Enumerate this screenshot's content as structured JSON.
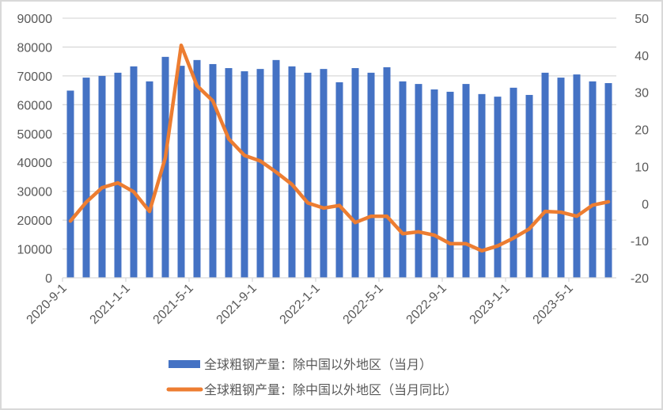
{
  "chart_data": {
    "type": "bar+line",
    "title": "",
    "categories": [
      "2020-9",
      "2020-10",
      "2020-11",
      "2020-12",
      "2021-1",
      "2021-2",
      "2021-3",
      "2021-4",
      "2021-5",
      "2021-6",
      "2021-7",
      "2021-8",
      "2021-9",
      "2021-10",
      "2021-11",
      "2021-12",
      "2022-1",
      "2022-2",
      "2022-3",
      "2022-4",
      "2022-5",
      "2022-6",
      "2022-7",
      "2022-8",
      "2022-9",
      "2022-10",
      "2022-11",
      "2022-12",
      "2023-1",
      "2023-2",
      "2023-3",
      "2023-4",
      "2023-5",
      "2023-6",
      "2023-7"
    ],
    "x_tick_labels": [
      "2020-9-1",
      "2021-1-1",
      "2021-5-1",
      "2021-9-1",
      "2022-1-1",
      "2022-5-1",
      "2022-9-1",
      "2023-1-1",
      "2023-5-1"
    ],
    "series": [
      {
        "name": "全球粗钢产量：除中国以外地区（当月）",
        "type": "bar",
        "axis": "left",
        "color": "#4472C4",
        "values": [
          64900,
          69400,
          70000,
          71100,
          73300,
          68100,
          76600,
          73500,
          75500,
          74100,
          72700,
          71600,
          72400,
          75500,
          73300,
          71100,
          72400,
          67800,
          72700,
          71100,
          73000,
          68100,
          67200,
          65300,
          64500,
          67200,
          63700,
          62800,
          65900,
          63400,
          71100,
          69400,
          70500,
          68100,
          67500
        ]
      },
      {
        "name": "全球粗钢产量：除中国以外地区（当月同比）",
        "type": "line",
        "axis": "right",
        "color": "#ED7D31",
        "values": [
          -4.7,
          0.4,
          4.3,
          5.6,
          3.2,
          -2.1,
          12.4,
          42.7,
          31.8,
          27.7,
          17.5,
          13.0,
          11.5,
          8.5,
          5.2,
          0.2,
          -1.2,
          -0.5,
          -5.1,
          -3.4,
          -3.4,
          -8.1,
          -7.6,
          -8.5,
          -10.8,
          -10.8,
          -12.7,
          -11.4,
          -9.3,
          -6.8,
          -2.1,
          -2.3,
          -3.4,
          -0.4,
          0.5
        ]
      }
    ],
    "y_left": {
      "min": 0,
      "max": 90000,
      "step": 10000,
      "ticks": [
        "0",
        "10000",
        "20000",
        "30000",
        "40000",
        "50000",
        "60000",
        "70000",
        "80000",
        "90000"
      ]
    },
    "y_right": {
      "min": -20,
      "max": 50,
      "step": 10,
      "ticks": [
        "-20",
        "-10",
        "0",
        "10",
        "20",
        "30",
        "40",
        "50"
      ]
    },
    "xlabel": "",
    "ylabel_left": "",
    "ylabel_right": "",
    "grid": true,
    "legend_position": "bottom"
  },
  "legend": {
    "items": [
      {
        "label": "全球粗钢产量：除中国以外地区（当月）",
        "color": "#4472C4",
        "kind": "bar"
      },
      {
        "label": "全球粗钢产量：除中国以外地区（当月同比）",
        "color": "#ED7D31",
        "kind": "line"
      }
    ]
  },
  "colors": {
    "bar": "#4472C4",
    "line": "#ED7D31",
    "grid": "#d9d9d9",
    "text": "#595959",
    "frame": "#d9d9d9"
  }
}
